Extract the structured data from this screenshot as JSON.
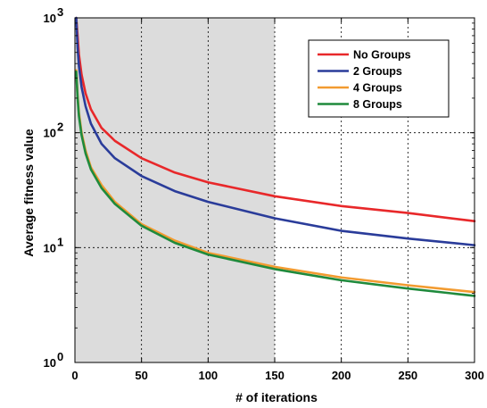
{
  "chart_data": {
    "type": "line",
    "xlabel": "# of iterations",
    "ylabel": "Average fitness value",
    "xlim": [
      0,
      300
    ],
    "ylim": [
      1,
      1000
    ],
    "yscale": "log",
    "grid": true,
    "legend_position": "top-right",
    "x_ticks": [
      "0",
      "50",
      "100",
      "150",
      "200",
      "250",
      "300"
    ],
    "y_ticks": [
      {
        "base": "10",
        "exp": "0"
      },
      {
        "base": "10",
        "exp": "1"
      },
      {
        "base": "10",
        "exp": "2"
      },
      {
        "base": "10",
        "exp": "3"
      }
    ],
    "shaded_region": {
      "x": [
        0,
        150
      ],
      "color": "#dcdcdc"
    },
    "series": [
      {
        "name": "No Groups",
        "color": "#e8282a",
        "x": [
          1,
          2,
          3,
          5,
          8,
          12,
          20,
          30,
          50,
          75,
          100,
          150,
          200,
          250,
          300
        ],
        "y": [
          1000,
          700,
          480,
          320,
          220,
          160,
          110,
          85,
          60,
          45,
          37,
          28,
          23,
          20,
          17
        ]
      },
      {
        "name": "2 Groups",
        "color": "#2a3c9a",
        "x": [
          1,
          2,
          3,
          5,
          8,
          12,
          20,
          30,
          50,
          75,
          100,
          150,
          200,
          250,
          300
        ],
        "y": [
          1000,
          550,
          380,
          250,
          170,
          120,
          80,
          60,
          42,
          31,
          25,
          18,
          14,
          12,
          10.5
        ]
      },
      {
        "name": "4 Groups",
        "color": "#f29b30",
        "x": [
          1,
          2,
          3,
          5,
          8,
          12,
          20,
          30,
          50,
          75,
          100,
          150,
          200,
          250,
          300
        ],
        "y": [
          350,
          210,
          150,
          100,
          70,
          50,
          35,
          25,
          16,
          11.5,
          9,
          6.8,
          5.5,
          4.7,
          4.1
        ]
      },
      {
        "name": "8 Groups",
        "color": "#1f8a3c",
        "x": [
          1,
          2,
          3,
          5,
          8,
          12,
          20,
          30,
          50,
          75,
          100,
          150,
          200,
          250,
          300
        ],
        "y": [
          340,
          200,
          140,
          95,
          66,
          48,
          33,
          24,
          15.5,
          11,
          8.7,
          6.5,
          5.2,
          4.4,
          3.8
        ]
      }
    ]
  }
}
